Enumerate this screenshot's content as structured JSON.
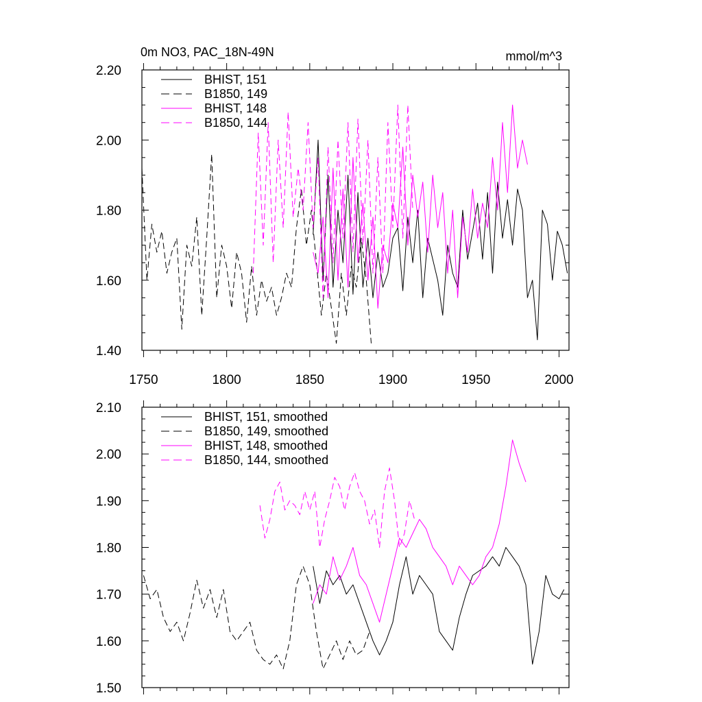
{
  "chart_data": [
    {
      "type": "line",
      "title_left": "0m NO3, PAC_18N-49N",
      "title_right": "mmol/m^3",
      "xlabel": "",
      "ylabel": "",
      "xlim": [
        1749,
        2006
      ],
      "ylim": [
        1.4,
        2.2
      ],
      "yticks": [
        "1.40",
        "1.60",
        "1.80",
        "2.00",
        "2.20"
      ],
      "xticks": [
        "1750",
        "1800",
        "1850",
        "1900",
        "1950",
        "2000"
      ],
      "legend_position": "top-left",
      "series": [
        {
          "name": "BHIST, 151",
          "color": "#000000",
          "dash": "solid",
          "x": [
            1852,
            1855,
            1858,
            1861,
            1864,
            1867,
            1870,
            1873,
            1876,
            1879,
            1882,
            1885,
            1888,
            1891,
            1894,
            1897,
            1900,
            1903,
            1906,
            1909,
            1912,
            1915,
            1918,
            1921,
            1924,
            1927,
            1930,
            1933,
            1936,
            1939,
            1942,
            1945,
            1948,
            1951,
            1954,
            1957,
            1960,
            1963,
            1966,
            1969,
            1972,
            1975,
            1978,
            1981,
            1984,
            1987,
            1990,
            1993,
            1996,
            1999,
            2002,
            2005
          ],
          "y": [
            1.73,
            2.0,
            1.6,
            1.9,
            1.58,
            1.8,
            1.65,
            1.9,
            1.56,
            1.85,
            1.58,
            1.72,
            1.55,
            1.68,
            1.58,
            1.62,
            1.72,
            1.75,
            1.57,
            1.78,
            1.65,
            1.8,
            1.55,
            1.72,
            1.66,
            1.6,
            1.5,
            1.7,
            1.62,
            1.58,
            1.8,
            1.66,
            1.74,
            1.82,
            1.66,
            1.85,
            1.62,
            1.88,
            1.72,
            1.83,
            1.7,
            1.86,
            1.8,
            1.55,
            1.6,
            1.43,
            1.8,
            1.76,
            1.6,
            1.74,
            1.7,
            1.62
          ]
        },
        {
          "name": "B1850, 149",
          "color": "#000000",
          "dash": "dashed",
          "x": [
            1749,
            1752,
            1755,
            1758,
            1761,
            1764,
            1767,
            1770,
            1773,
            1776,
            1779,
            1782,
            1785,
            1788,
            1791,
            1794,
            1797,
            1800,
            1803,
            1806,
            1809,
            1812,
            1815,
            1818,
            1821,
            1824,
            1827,
            1830,
            1833,
            1836,
            1839,
            1842,
            1845,
            1848,
            1851,
            1854,
            1857,
            1860,
            1863,
            1866,
            1869,
            1872,
            1875,
            1878,
            1881,
            1884,
            1887
          ],
          "y": [
            1.92,
            1.6,
            1.76,
            1.68,
            1.74,
            1.62,
            1.68,
            1.72,
            1.46,
            1.7,
            1.64,
            1.78,
            1.5,
            1.72,
            1.96,
            1.55,
            1.7,
            1.64,
            1.52,
            1.68,
            1.62,
            1.48,
            1.64,
            1.5,
            1.6,
            1.54,
            1.58,
            1.5,
            1.55,
            1.62,
            1.58,
            1.75,
            1.86,
            1.7,
            1.8,
            1.65,
            1.5,
            1.62,
            1.52,
            1.42,
            1.62,
            1.5,
            1.64,
            1.58,
            1.72,
            1.6,
            1.42
          ]
        },
        {
          "name": "BHIST, 148",
          "color": "#ff00ff",
          "dash": "solid",
          "x": [
            1852,
            1855,
            1858,
            1861,
            1864,
            1867,
            1870,
            1873,
            1876,
            1879,
            1882,
            1885,
            1888,
            1891,
            1894,
            1897,
            1900,
            1903,
            1906,
            1909,
            1912,
            1915,
            1918,
            1921,
            1924,
            1927,
            1930,
            1933,
            1936,
            1939,
            1942,
            1945,
            1948,
            1951,
            1954,
            1957,
            1960,
            1963,
            1966,
            1969,
            1972,
            1975,
            1978,
            1981
          ],
          "y": [
            1.68,
            1.62,
            1.78,
            1.55,
            1.92,
            1.6,
            1.86,
            1.58,
            1.95,
            1.65,
            1.82,
            1.6,
            1.78,
            1.52,
            1.7,
            1.65,
            1.82,
            1.75,
            1.98,
            1.7,
            1.9,
            1.78,
            1.88,
            1.68,
            1.9,
            1.75,
            1.85,
            1.62,
            1.8,
            1.55,
            1.78,
            1.68,
            1.86,
            1.72,
            1.82,
            1.75,
            1.95,
            1.8,
            2.05,
            1.85,
            2.1,
            1.92,
            2.0,
            1.93
          ]
        },
        {
          "name": "B1850, 144",
          "color": "#ff00ff",
          "dash": "dashed",
          "x": [
            1816,
            1819,
            1822,
            1825,
            1828,
            1831,
            1834,
            1837,
            1840,
            1843,
            1846,
            1849,
            1852,
            1855,
            1858,
            1861,
            1864,
            1867,
            1870,
            1873,
            1876,
            1879,
            1882,
            1885,
            1888,
            1891,
            1894,
            1897,
            1900,
            1903,
            1906,
            1909,
            1912
          ],
          "y": [
            1.62,
            2.02,
            1.7,
            2.05,
            1.65,
            2.0,
            1.75,
            2.08,
            1.78,
            1.92,
            1.8,
            2.05,
            1.75,
            1.95,
            1.55,
            1.98,
            1.65,
            2.0,
            1.72,
            2.05,
            1.68,
            2.06,
            1.7,
            2.0,
            1.62,
            1.95,
            1.62,
            2.05,
            1.75,
            2.1,
            1.72,
            2.1,
            1.8
          ]
        }
      ]
    },
    {
      "type": "line",
      "title_left": "",
      "title_right": "",
      "xlabel": "",
      "ylabel": "",
      "xlim": [
        1749,
        2006
      ],
      "ylim": [
        1.5,
        2.1
      ],
      "yticks": [
        "1.50",
        "1.60",
        "1.70",
        "1.80",
        "1.90",
        "2.00",
        "2.10"
      ],
      "xticks": [],
      "legend_position": "top-left",
      "series": [
        {
          "name": "BHIST, 151, smoothed",
          "color": "#000000",
          "dash": "solid",
          "x": [
            1852,
            1856,
            1860,
            1864,
            1868,
            1872,
            1876,
            1880,
            1884,
            1888,
            1892,
            1896,
            1900,
            1904,
            1908,
            1912,
            1916,
            1920,
            1924,
            1928,
            1932,
            1936,
            1940,
            1944,
            1948,
            1952,
            1956,
            1960,
            1964,
            1968,
            1972,
            1976,
            1980,
            1984,
            1988,
            1992,
            1996,
            2000,
            2003
          ],
          "y": [
            1.76,
            1.68,
            1.75,
            1.72,
            1.74,
            1.7,
            1.72,
            1.68,
            1.64,
            1.6,
            1.57,
            1.6,
            1.64,
            1.72,
            1.78,
            1.7,
            1.74,
            1.72,
            1.7,
            1.62,
            1.6,
            1.58,
            1.65,
            1.7,
            1.74,
            1.75,
            1.76,
            1.78,
            1.76,
            1.8,
            1.78,
            1.76,
            1.72,
            1.55,
            1.62,
            1.74,
            1.7,
            1.69,
            1.71
          ]
        },
        {
          "name": "B1850, 149, smoothed",
          "color": "#000000",
          "dash": "dashed",
          "x": [
            1750,
            1754,
            1758,
            1762,
            1766,
            1770,
            1774,
            1778,
            1782,
            1786,
            1790,
            1794,
            1798,
            1802,
            1806,
            1810,
            1814,
            1818,
            1822,
            1826,
            1830,
            1834,
            1838,
            1842,
            1846,
            1850,
            1854,
            1858,
            1862,
            1866,
            1870,
            1874,
            1878,
            1882,
            1886
          ],
          "y": [
            1.74,
            1.69,
            1.71,
            1.65,
            1.62,
            1.64,
            1.6,
            1.66,
            1.73,
            1.67,
            1.71,
            1.65,
            1.71,
            1.62,
            1.6,
            1.62,
            1.64,
            1.58,
            1.56,
            1.55,
            1.57,
            1.54,
            1.6,
            1.72,
            1.76,
            1.72,
            1.62,
            1.54,
            1.57,
            1.6,
            1.56,
            1.6,
            1.57,
            1.58,
            1.62
          ]
        },
        {
          "name": "BHIST, 148, smoothed",
          "color": "#ff00ff",
          "dash": "solid",
          "x": [
            1852,
            1856,
            1860,
            1864,
            1868,
            1872,
            1876,
            1880,
            1884,
            1888,
            1892,
            1896,
            1900,
            1904,
            1908,
            1912,
            1916,
            1920,
            1924,
            1928,
            1932,
            1936,
            1940,
            1944,
            1948,
            1952,
            1956,
            1960,
            1964,
            1968,
            1972,
            1976,
            1980
          ],
          "y": [
            1.68,
            1.72,
            1.7,
            1.78,
            1.73,
            1.76,
            1.8,
            1.74,
            1.72,
            1.68,
            1.64,
            1.7,
            1.76,
            1.82,
            1.8,
            1.83,
            1.86,
            1.84,
            1.8,
            1.78,
            1.76,
            1.72,
            1.76,
            1.74,
            1.72,
            1.74,
            1.78,
            1.8,
            1.85,
            1.93,
            2.03,
            1.98,
            1.94
          ]
        },
        {
          "name": "B1850, 144, smoothed",
          "color": "#ff00ff",
          "dash": "dashed",
          "x": [
            1820,
            1823,
            1826,
            1829,
            1832,
            1835,
            1838,
            1841,
            1844,
            1847,
            1850,
            1853,
            1856,
            1859,
            1862,
            1865,
            1868,
            1871,
            1874,
            1877,
            1880,
            1883,
            1886,
            1889,
            1892,
            1895,
            1898,
            1901,
            1904,
            1907,
            1910,
            1913
          ],
          "y": [
            1.89,
            1.82,
            1.86,
            1.92,
            1.94,
            1.88,
            1.9,
            1.89,
            1.87,
            1.92,
            1.88,
            1.92,
            1.8,
            1.86,
            1.9,
            1.95,
            1.93,
            1.88,
            1.93,
            1.96,
            1.92,
            1.9,
            1.85,
            1.88,
            1.8,
            1.92,
            1.97,
            1.9,
            1.8,
            1.83,
            1.9,
            1.86
          ]
        }
      ]
    }
  ]
}
